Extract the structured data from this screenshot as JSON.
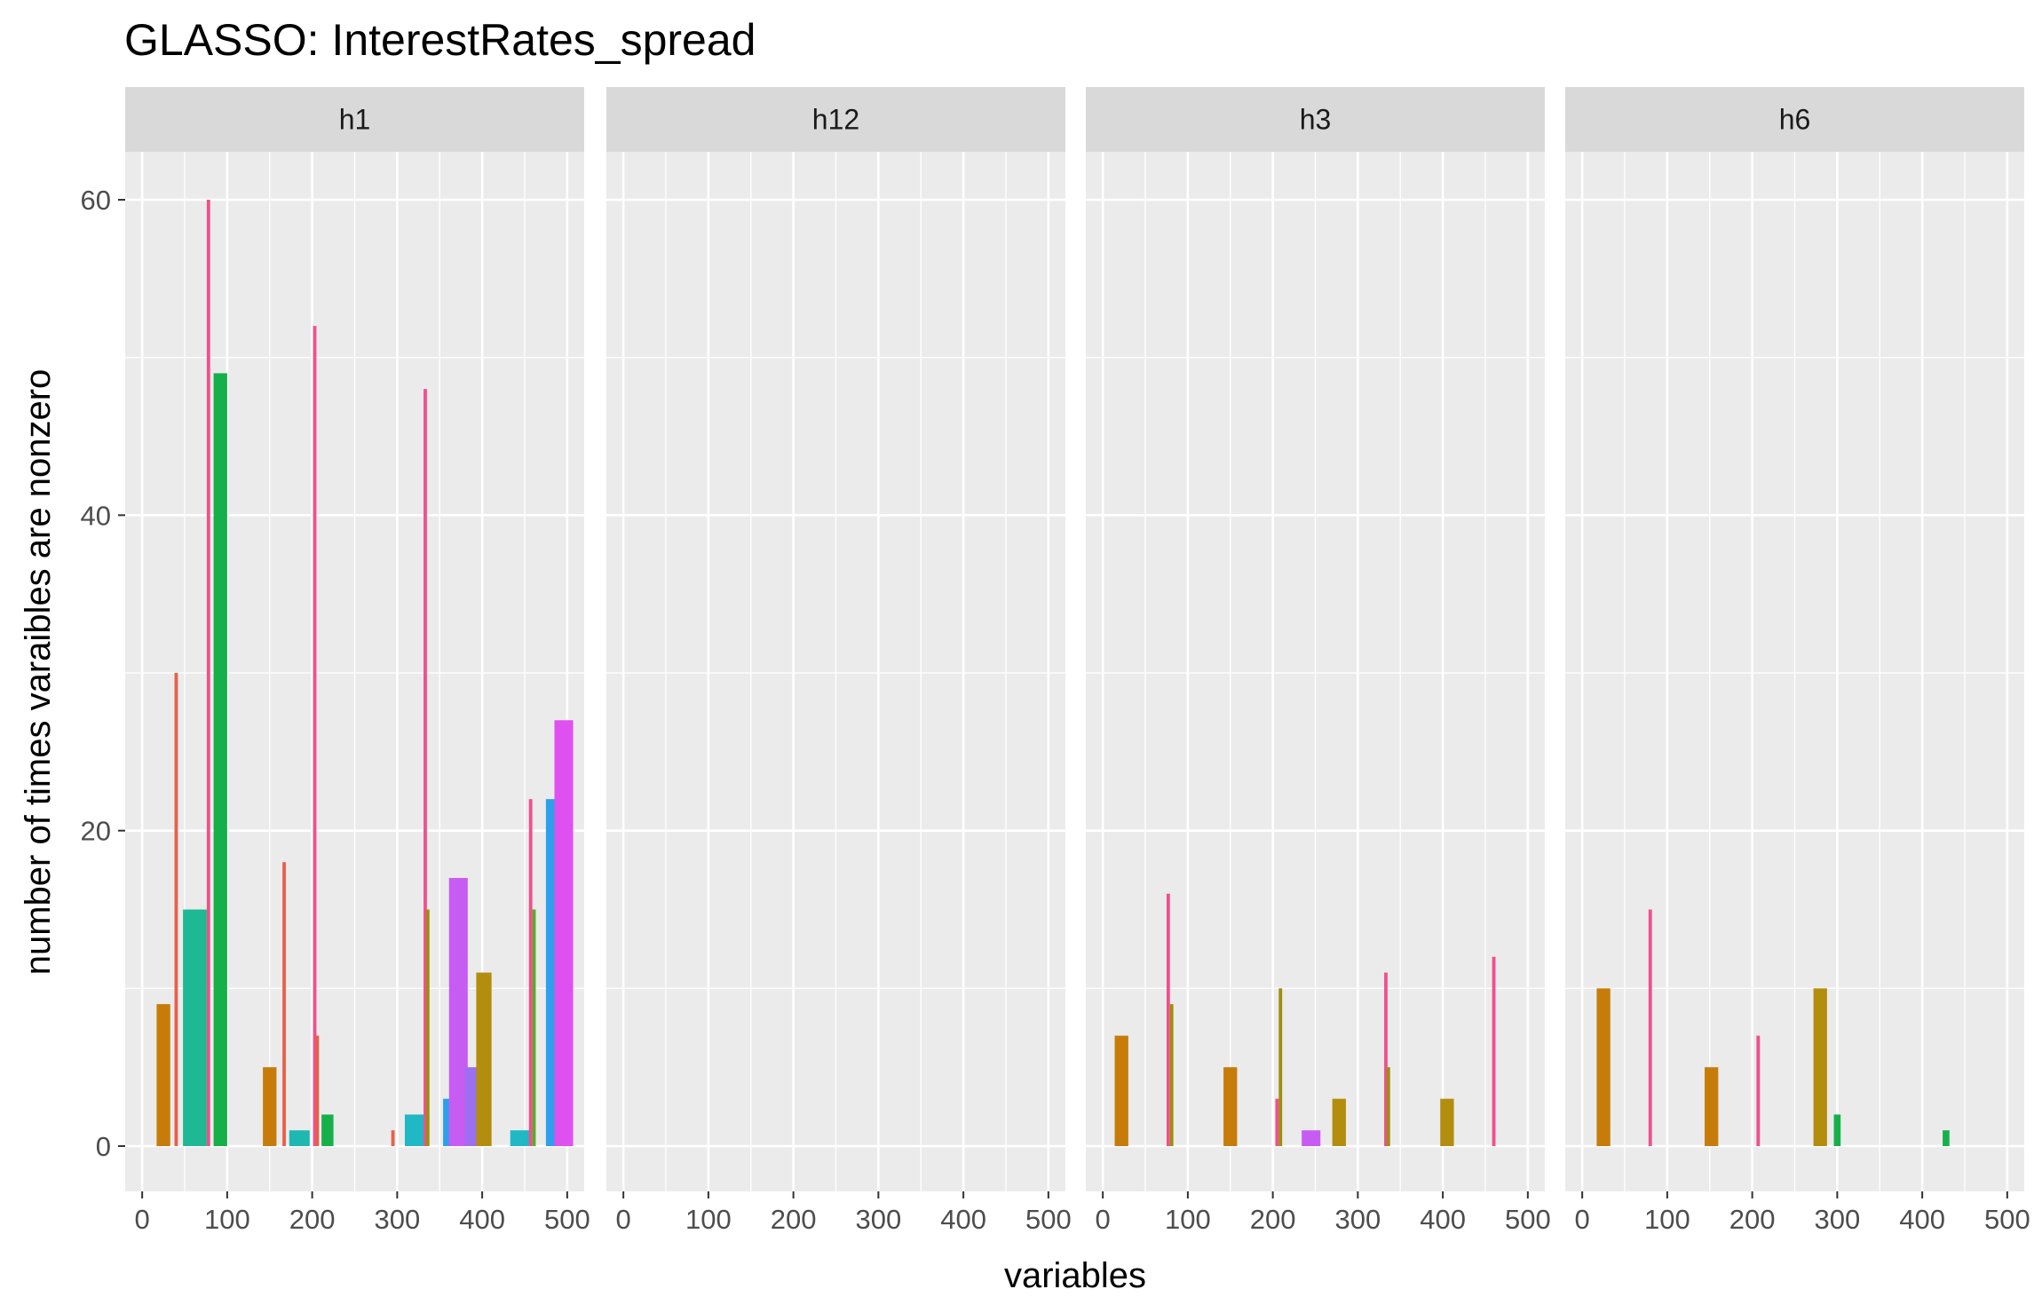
{
  "chart_data": {
    "type": "bar",
    "title": "GLASSO: InterestRates_spread",
    "xlabel": "variables",
    "ylabel": "number of times varaibles are nonzero",
    "xlim": [
      -20,
      520
    ],
    "ylim": [
      -3,
      63
    ],
    "x_ticks": [
      "0",
      "100",
      "200",
      "300",
      "400",
      "500"
    ],
    "y_ticks": [
      "0",
      "20",
      "40",
      "60"
    ],
    "grid": true,
    "legend": "none",
    "panels": [
      {
        "label": "h1",
        "bars": [
          {
            "x": 25,
            "y": 9,
            "w": 16,
            "color": "#C77C0A"
          },
          {
            "x": 40,
            "y": 30,
            "w": 4,
            "color": "#E8604A"
          },
          {
            "x": 62,
            "y": 15,
            "w": 28,
            "color": "#1FB894"
          },
          {
            "x": 78,
            "y": 60,
            "w": 4,
            "color": "#F0508C"
          },
          {
            "x": 92,
            "y": 49,
            "w": 16,
            "color": "#16B04A"
          },
          {
            "x": 150,
            "y": 5,
            "w": 16,
            "color": "#C77C0A"
          },
          {
            "x": 167,
            "y": 18,
            "w": 4,
            "color": "#E8604A"
          },
          {
            "x": 185,
            "y": 1,
            "w": 24,
            "color": "#1FB8B0"
          },
          {
            "x": 203,
            "y": 52,
            "w": 4,
            "color": "#F0508C"
          },
          {
            "x": 206,
            "y": 7,
            "w": 4,
            "color": "#E8604A"
          },
          {
            "x": 218,
            "y": 2,
            "w": 14,
            "color": "#16B04A"
          },
          {
            "x": 295,
            "y": 1,
            "w": 4,
            "color": "#E8604A"
          },
          {
            "x": 322,
            "y": 2,
            "w": 26,
            "color": "#1FB8C4"
          },
          {
            "x": 333,
            "y": 48,
            "w": 4,
            "color": "#F0508C"
          },
          {
            "x": 336,
            "y": 15,
            "w": 4,
            "color": "#9C8E10"
          },
          {
            "x": 358,
            "y": 3,
            "w": 8,
            "color": "#2E9FEA"
          },
          {
            "x": 372,
            "y": 17,
            "w": 22,
            "color": "#C75CF2"
          },
          {
            "x": 387,
            "y": 5,
            "w": 14,
            "color": "#9C6FF0"
          },
          {
            "x": 402,
            "y": 11,
            "w": 18,
            "color": "#B38D0E"
          },
          {
            "x": 445,
            "y": 1,
            "w": 24,
            "color": "#1FB8C4"
          },
          {
            "x": 457,
            "y": 22,
            "w": 4,
            "color": "#F0508C"
          },
          {
            "x": 461,
            "y": 15,
            "w": 4,
            "color": "#5BAA2A"
          },
          {
            "x": 480,
            "y": 22,
            "w": 10,
            "color": "#2E9FEA"
          },
          {
            "x": 496,
            "y": 27,
            "w": 22,
            "color": "#DE50F0"
          }
        ]
      },
      {
        "label": "h12",
        "bars": []
      },
      {
        "label": "h3",
        "bars": [
          {
            "x": 22,
            "y": 7,
            "w": 16,
            "color": "#C77C0A"
          },
          {
            "x": 77,
            "y": 16,
            "w": 4,
            "color": "#F0508C"
          },
          {
            "x": 81,
            "y": 9,
            "w": 4,
            "color": "#9C8E10"
          },
          {
            "x": 150,
            "y": 5,
            "w": 16,
            "color": "#C77C0A"
          },
          {
            "x": 205,
            "y": 3,
            "w": 4,
            "color": "#F0508C"
          },
          {
            "x": 209,
            "y": 10,
            "w": 4,
            "color": "#9C8E10"
          },
          {
            "x": 245,
            "y": 1,
            "w": 22,
            "color": "#C75CF2"
          },
          {
            "x": 278,
            "y": 3,
            "w": 16,
            "color": "#B38D0E"
          },
          {
            "x": 333,
            "y": 11,
            "w": 4,
            "color": "#F0508C"
          },
          {
            "x": 336,
            "y": 5,
            "w": 4,
            "color": "#9C8E10"
          },
          {
            "x": 405,
            "y": 3,
            "w": 16,
            "color": "#B38D0E"
          },
          {
            "x": 460,
            "y": 12,
            "w": 4,
            "color": "#F0508C"
          }
        ]
      },
      {
        "label": "h6",
        "bars": [
          {
            "x": 25,
            "y": 10,
            "w": 16,
            "color": "#C77C0A"
          },
          {
            "x": 80,
            "y": 15,
            "w": 4,
            "color": "#F0508C"
          },
          {
            "x": 152,
            "y": 5,
            "w": 16,
            "color": "#C77C0A"
          },
          {
            "x": 207,
            "y": 7,
            "w": 4,
            "color": "#F0508C"
          },
          {
            "x": 280,
            "y": 10,
            "w": 16,
            "color": "#B38D0E"
          },
          {
            "x": 300,
            "y": 2,
            "w": 8,
            "color": "#16B04A"
          },
          {
            "x": 428,
            "y": 1,
            "w": 8,
            "color": "#16B04A"
          }
        ]
      }
    ]
  }
}
